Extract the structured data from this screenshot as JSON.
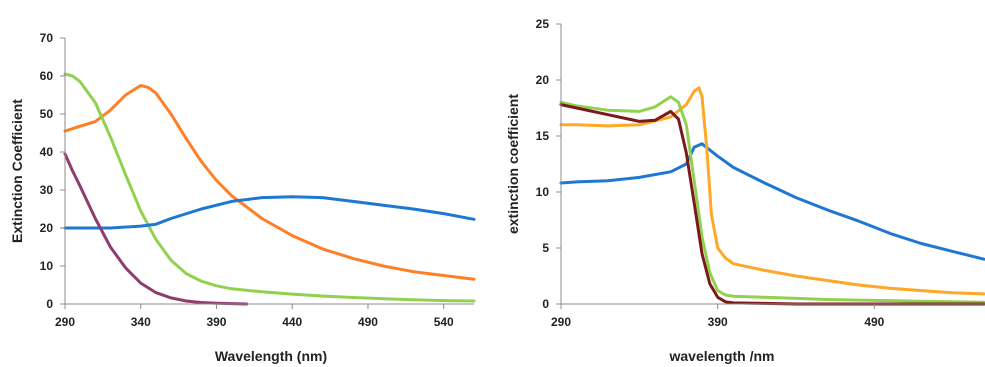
{
  "chart_data": [
    {
      "type": "line",
      "title": "",
      "xlabel": "Wavelength (nm)",
      "ylabel": "Extinction Coefficient",
      "xlim": [
        290,
        560
      ],
      "ylim": [
        0,
        70
      ],
      "x_ticks": [
        "290",
        "340",
        "390",
        "440",
        "490",
        "540"
      ],
      "y_ticks": [
        "0",
        "10",
        "20",
        "30",
        "40",
        "50",
        "60",
        "70"
      ],
      "grid": false,
      "legend": "none",
      "series": [
        {
          "color": "#ff7f27",
          "x": [
            290,
            300,
            310,
            320,
            330,
            340,
            345,
            350,
            360,
            370,
            380,
            390,
            400,
            420,
            440,
            460,
            480,
            500,
            520,
            540,
            560
          ],
          "y": [
            45.5,
            46.8,
            48,
            51,
            55,
            57.5,
            57,
            55.5,
            50,
            43.5,
            37.5,
            32.5,
            28.5,
            22.5,
            18,
            14.5,
            12,
            10,
            8.5,
            7.5,
            6.5
          ]
        },
        {
          "color": "#92d050",
          "x": [
            290,
            295,
            300,
            310,
            320,
            330,
            340,
            350,
            360,
            370,
            380,
            390,
            400,
            420,
            440,
            460,
            480,
            500,
            520,
            540,
            560
          ],
          "y": [
            60.5,
            60,
            58.5,
            53,
            44,
            34,
            24.5,
            17,
            11.5,
            8,
            6,
            4.8,
            4,
            3.2,
            2.6,
            2.1,
            1.7,
            1.4,
            1.1,
            0.9,
            0.8
          ]
        },
        {
          "color": "#1f77d4",
          "x": [
            290,
            300,
            320,
            340,
            350,
            360,
            380,
            400,
            420,
            440,
            460,
            480,
            500,
            520,
            540,
            560
          ],
          "y": [
            20,
            20,
            20,
            20.5,
            21,
            22.5,
            25,
            27,
            28,
            28.2,
            28,
            27,
            26,
            25,
            23.8,
            22.3
          ]
        },
        {
          "color": "#8e3d6f",
          "x": [
            290,
            295,
            300,
            310,
            320,
            330,
            340,
            350,
            360,
            370,
            380,
            390,
            400,
            410
          ],
          "y": [
            39.5,
            35,
            31,
            22.5,
            15,
            9.5,
            5.5,
            3,
            1.6,
            0.8,
            0.4,
            0.2,
            0.1,
            0
          ]
        }
      ]
    },
    {
      "type": "line",
      "title": "",
      "xlabel": "wavelength /nm",
      "ylabel": "extinction coefficient",
      "xlim": [
        290,
        560
      ],
      "ylim": [
        0,
        25
      ],
      "x_ticks": [
        "290",
        "390",
        "490"
      ],
      "y_ticks": [
        "0",
        "5",
        "10",
        "15",
        "20",
        "25"
      ],
      "grid": false,
      "legend": "none",
      "series": [
        {
          "color": "#1f77d4",
          "x": [
            290,
            300,
            320,
            340,
            360,
            370,
            375,
            380,
            390,
            400,
            420,
            440,
            460,
            480,
            500,
            520,
            540,
            560
          ],
          "y": [
            10.8,
            10.9,
            11,
            11.3,
            11.8,
            12.5,
            14,
            14.3,
            13.2,
            12.2,
            10.8,
            9.5,
            8.4,
            7.4,
            6.3,
            5.4,
            4.7,
            4
          ]
        },
        {
          "color": "#ffa726",
          "x": [
            290,
            300,
            320,
            340,
            360,
            370,
            375,
            378,
            380,
            383,
            386,
            390,
            395,
            400,
            420,
            440,
            460,
            480,
            500,
            520,
            540,
            560
          ],
          "y": [
            16,
            16,
            15.9,
            16,
            16.7,
            17.8,
            19,
            19.3,
            18.5,
            14,
            8,
            5,
            4.1,
            3.6,
            3,
            2.5,
            2.1,
            1.7,
            1.4,
            1.2,
            1,
            0.9
          ]
        },
        {
          "color": "#92d050",
          "x": [
            290,
            300,
            320,
            340,
            350,
            360,
            365,
            370,
            375,
            380,
            385,
            390,
            395,
            400,
            420,
            440,
            460,
            480,
            500,
            520,
            540,
            560
          ],
          "y": [
            18,
            17.7,
            17.3,
            17.2,
            17.6,
            18.5,
            18,
            16,
            11,
            6,
            2.8,
            1.2,
            0.8,
            0.7,
            0.6,
            0.5,
            0.4,
            0.35,
            0.3,
            0.25,
            0.2,
            0.15
          ]
        },
        {
          "color": "#7b1a1a",
          "x": [
            290,
            300,
            320,
            340,
            350,
            360,
            365,
            370,
            375,
            380,
            385,
            390,
            395,
            400,
            420,
            440,
            460,
            480,
            500,
            520,
            540,
            560
          ],
          "y": [
            17.8,
            17.5,
            16.9,
            16.3,
            16.4,
            17.2,
            16.5,
            13.5,
            9,
            4.5,
            1.8,
            0.6,
            0.2,
            0.1,
            0.05,
            0,
            0,
            0,
            0,
            0,
            0,
            0
          ]
        }
      ]
    }
  ]
}
